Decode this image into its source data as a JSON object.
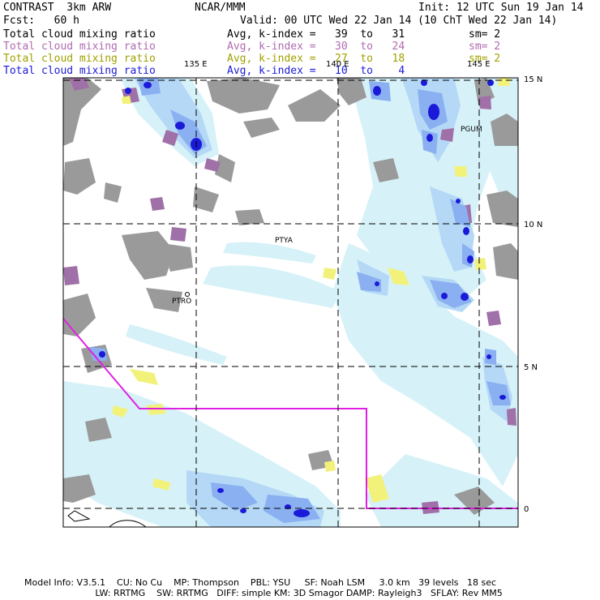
{
  "header": {
    "left1": "CONTRAST  3km ARW",
    "center1": "NCAR/MMM",
    "right1": "Init: 12 UTC Sun 19 Jan 14",
    "left2": "Fcst:   60 h",
    "right2": "Valid: 00 UTC Wed 22 Jan 14 (10 ChT Wed 22 Jan 14)",
    "fields": [
      {
        "name": "Total cloud mixing ratio",
        "range": "Avg, k-index =   39  to   31",
        "sm": "sm= 2",
        "color": "#000000"
      },
      {
        "name": "Total cloud mixing ratio",
        "range": "Avg, k-index =   30  to   24",
        "sm": "sm= 2",
        "color": "#b06ab0"
      },
      {
        "name": "Total cloud mixing ratio",
        "range": "Avg, k-index =   27  to   18",
        "sm": "sm= 2",
        "color": "#a0a000"
      },
      {
        "name": "Total cloud mixing ratio",
        "range": "Avg, k-index =   10  to    4",
        "sm": "",
        "color": "#1a1ad8"
      }
    ]
  },
  "map": {
    "lon_labels": [
      "135 E",
      "140 E",
      "145 E"
    ],
    "lat_labels": [
      "15 N",
      "10 N",
      "5 N",
      "0"
    ],
    "stations": [
      {
        "name": "PGUM"
      },
      {
        "name": "PTYA"
      },
      {
        "name": "PTRO"
      }
    ],
    "colors": {
      "grey": "#9a9a9a",
      "purple": "#a070a8",
      "yellow": "#f2f27a",
      "light_cyan": "#d6f2f8",
      "light_blue": "#b4d8f6",
      "mid_blue": "#8ab0f2",
      "dark_blue": "#1a1ad8",
      "boundary": "#e020e0"
    }
  },
  "footer": {
    "line1": "Model Info: V3.5.1    CU: No Cu    MP: Thompson    PBL: YSU     SF: Noah LSM     3.0 km   39 levels   18 sec",
    "line2": "                         LW: RRTMG    SW: RRTMG   DIFF: simple KM: 3D Smagor DAMP: Rayleigh3   SFLAY: Rev MM5"
  }
}
